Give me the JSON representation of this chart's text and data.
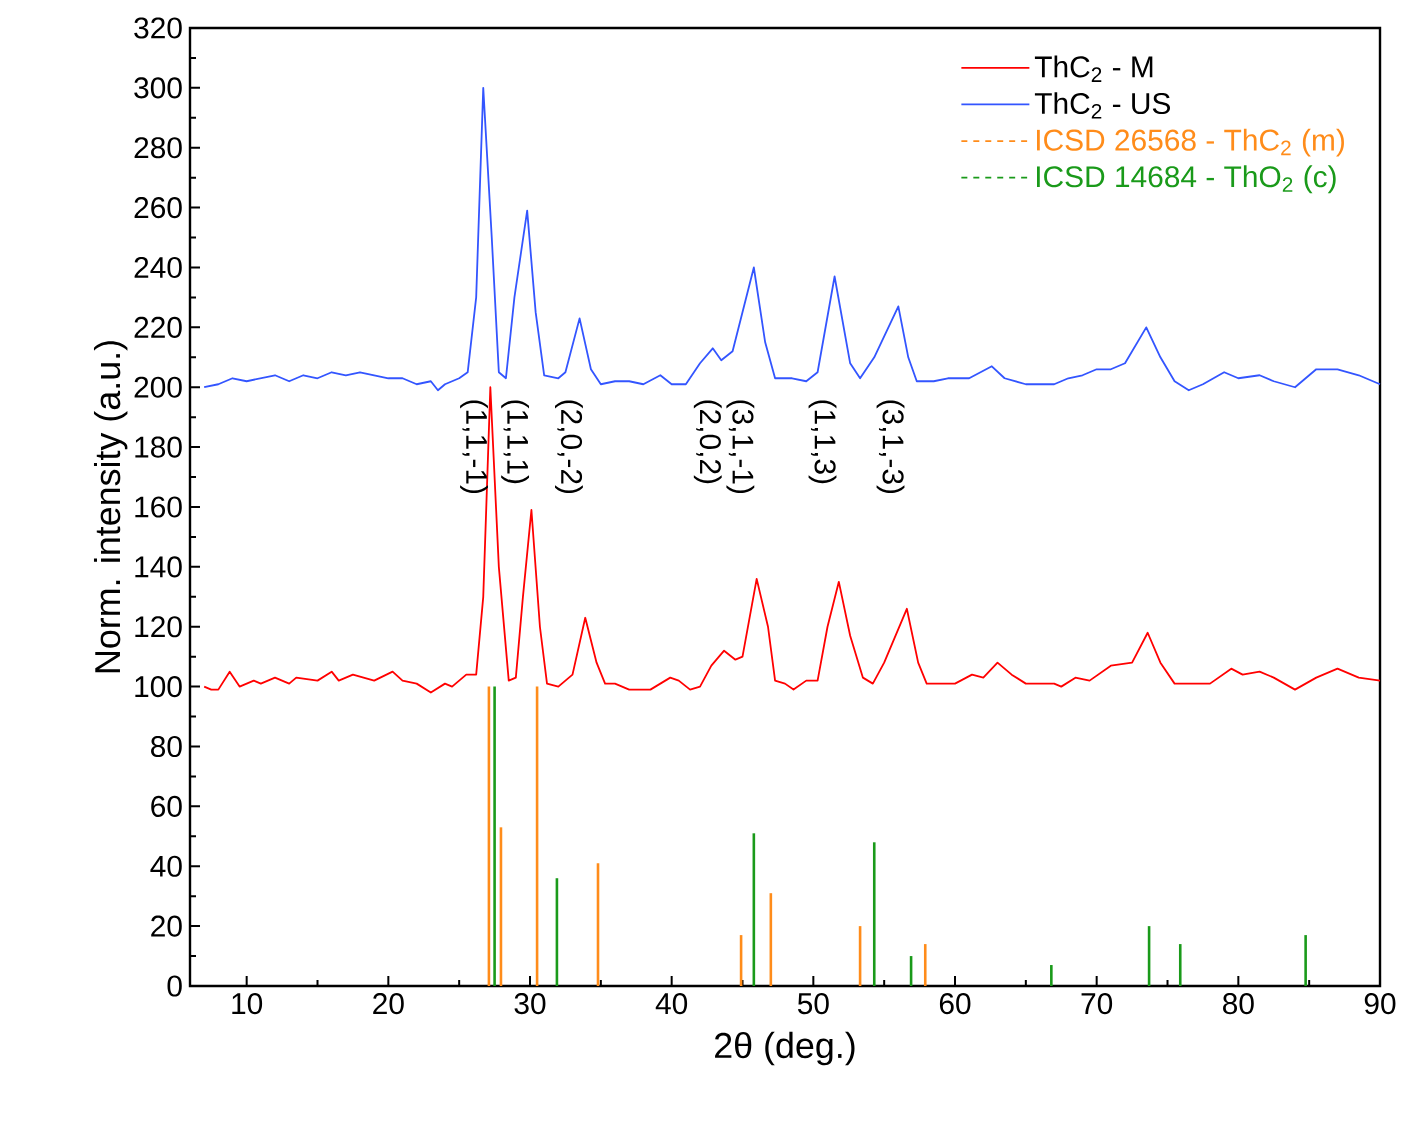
{
  "chart_data": {
    "type": "line",
    "xlabel": "2θ (deg.)",
    "ylabel": "Norm. intensity (a.u.)",
    "xlim": [
      6,
      90
    ],
    "ylim": [
      0,
      320
    ],
    "xticks": [
      10,
      20,
      30,
      40,
      50,
      60,
      70,
      80,
      90
    ],
    "yticks": [
      0,
      20,
      40,
      60,
      80,
      100,
      120,
      140,
      160,
      180,
      200,
      220,
      240,
      260,
      280,
      300,
      320
    ],
    "legend": "top right",
    "grid": false,
    "marker": "none",
    "series": [
      {
        "name": "ThC$_{2}$ - M",
        "color": "#ff0000",
        "x": [
          7,
          7.5,
          8,
          8.8,
          9.5,
          10.5,
          11,
          12,
          13,
          13.5,
          15,
          16,
          16.5,
          17.5,
          19,
          20.3,
          21,
          22,
          23,
          24,
          24.5,
          25.5,
          26.2,
          26.7,
          27.2,
          27.8,
          28.5,
          29,
          29.5,
          30.1,
          30.7,
          31.2,
          32,
          33,
          33.9,
          34.7,
          35.3,
          36,
          37,
          38.5,
          39.9,
          40.5,
          41.3,
          42,
          42.8,
          43.7,
          44.5,
          45,
          46,
          46.8,
          47.3,
          48,
          48.6,
          49.5,
          50.3,
          51,
          51.8,
          52.6,
          53.5,
          54.2,
          55,
          56.6,
          57.4,
          58,
          59,
          60,
          61.2,
          62,
          63,
          64,
          65,
          67,
          67.5,
          68.5,
          69.5,
          71,
          72.5,
          73.6,
          74.5,
          75.5,
          77,
          78,
          79.5,
          80.3,
          81.5,
          82.5,
          84,
          85.5,
          87,
          88.5,
          90
        ],
        "values": [
          100,
          99,
          99,
          105,
          100,
          102,
          101,
          103,
          101,
          103,
          102,
          105,
          102,
          104,
          102,
          105,
          102,
          101,
          98,
          101,
          100,
          104,
          104,
          130,
          200,
          140,
          102,
          103,
          130,
          159,
          120,
          101,
          100,
          104,
          123,
          108,
          101,
          101,
          99,
          99,
          103,
          102,
          99,
          100,
          107,
          112,
          109,
          110,
          136,
          120,
          102,
          101,
          99,
          102,
          102,
          120,
          135,
          117,
          103,
          101,
          108,
          126,
          108,
          101,
          101,
          101,
          104,
          103,
          108,
          104,
          101,
          101,
          100,
          103,
          102,
          107,
          108,
          118,
          108,
          101,
          101,
          101,
          106,
          104,
          105,
          103,
          99,
          103,
          106,
          103,
          102
        ]
      },
      {
        "name": "ThC$_{2}$ - US",
        "color": "#3355ff",
        "x": [
          7,
          8,
          9,
          10,
          11,
          12,
          13,
          14,
          15,
          16,
          17,
          18,
          19,
          20,
          21,
          22,
          23,
          23.5,
          24,
          25,
          25.6,
          26.2,
          26.7,
          27.3,
          27.8,
          28.3,
          28.9,
          29.8,
          30.4,
          31,
          32,
          32.5,
          33.5,
          34.3,
          35,
          36,
          37,
          38,
          39.2,
          40,
          41,
          42,
          42.9,
          43.5,
          44.3,
          45.8,
          46.6,
          47.3,
          48.5,
          49.5,
          50.3,
          51.5,
          52.6,
          53.3,
          54.3,
          56,
          56.7,
          57.3,
          58.5,
          59.5,
          61,
          62.6,
          63.5,
          65,
          67,
          68,
          69,
          70,
          71,
          72,
          73.5,
          74.5,
          75.5,
          76.5,
          77.5,
          79,
          80,
          81.5,
          82.5,
          84,
          85.5,
          87,
          88.5,
          90
        ],
        "values": [
          200,
          201,
          203,
          202,
          203,
          204,
          202,
          204,
          203,
          205,
          204,
          205,
          204,
          203,
          203,
          201,
          202,
          199,
          201,
          203,
          205,
          230,
          300,
          250,
          205,
          203,
          230,
          259,
          225,
          204,
          203,
          205,
          223,
          206,
          201,
          202,
          202,
          201,
          204,
          201,
          201,
          208,
          213,
          209,
          212,
          240,
          215,
          203,
          203,
          202,
          205,
          237,
          208,
          203,
          210,
          227,
          210,
          202,
          202,
          203,
          203,
          207,
          203,
          201,
          201,
          203,
          204,
          206,
          206,
          208,
          220,
          210,
          202,
          199,
          201,
          205,
          203,
          204,
          202,
          200,
          206,
          206,
          204,
          201
        ]
      },
      {
        "name": "ICSD 26568 - ThC$_{2}$ (m)",
        "color": "#ff8c1a",
        "type": "bar",
        "x": [
          27.1,
          27.95,
          30.5,
          34.8,
          44.9,
          47.0,
          53.3,
          57.9
        ],
        "values": [
          100,
          53,
          100,
          41,
          17,
          31,
          20,
          14
        ]
      },
      {
        "name": "ICSD 14684 - ThO$_{2}$ (c)",
        "color": "#1a9a1a",
        "type": "bar",
        "x": [
          27.5,
          31.9,
          45.8,
          54.3,
          56.9,
          66.8,
          73.7,
          75.9,
          84.75
        ],
        "values": [
          100,
          36,
          51,
          48,
          10,
          7,
          20,
          14,
          17
        ]
      }
    ],
    "annotations": [
      "(1,1,-1)",
      "(1,1,1)",
      "(2,0,-2)",
      "(2,0,2)",
      "(3,1,-1)",
      "(1,1,3)",
      "(3,1,-3)"
    ]
  }
}
